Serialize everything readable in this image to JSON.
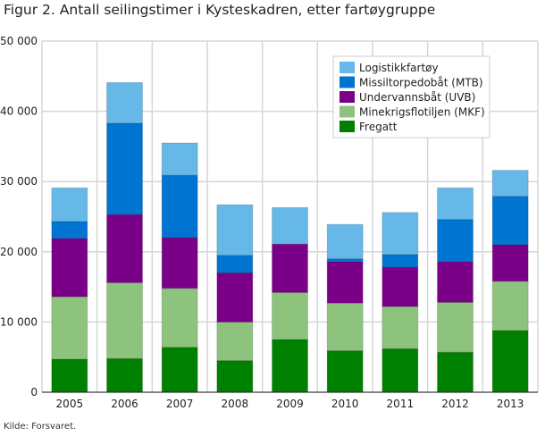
{
  "chart_data": {
    "type": "bar",
    "stacked": true,
    "title": "Figur 2. Antall seilingstimer i Kysteskadren, etter fartøygruppe",
    "source": "Kilde: Forsvaret.",
    "xlabel": "",
    "ylabel": "",
    "ylim": [
      0,
      50000
    ],
    "yticks": [
      "0",
      "10 000",
      "20 000",
      "30 000",
      "40 000",
      "50 000"
    ],
    "grid": true,
    "legend_placement": "top-right",
    "categories": [
      "2005",
      "2006",
      "2007",
      "2008",
      "2009",
      "2010",
      "2011",
      "2012",
      "2013"
    ],
    "series": [
      {
        "name": "Fregatt",
        "color": "#008000",
        "values": [
          4700,
          4800,
          6400,
          4500,
          7500,
          5900,
          6200,
          5700,
          8800
        ]
      },
      {
        "name": "Minekrigsflotiljen (MKF)",
        "color": "#8ec37e",
        "values": [
          8900,
          10800,
          8400,
          5500,
          6700,
          6800,
          6000,
          7100,
          7000
        ]
      },
      {
        "name": "Undervannsbåt (UVB)",
        "color": "#7b0088",
        "values": [
          8300,
          9700,
          7200,
          7000,
          6900,
          5900,
          5600,
          5800,
          5200
        ]
      },
      {
        "name": "Missiltorpedobåt (MTB)",
        "color": "#0074d1",
        "values": [
          2400,
          13000,
          8900,
          2500,
          0,
          400,
          1800,
          6000,
          6900
        ]
      },
      {
        "name": "Logistikkfartøy",
        "color": "#66b8e8",
        "values": [
          4800,
          5800,
          4600,
          7200,
          5200,
          4900,
          6000,
          4500,
          3700
        ]
      }
    ]
  }
}
